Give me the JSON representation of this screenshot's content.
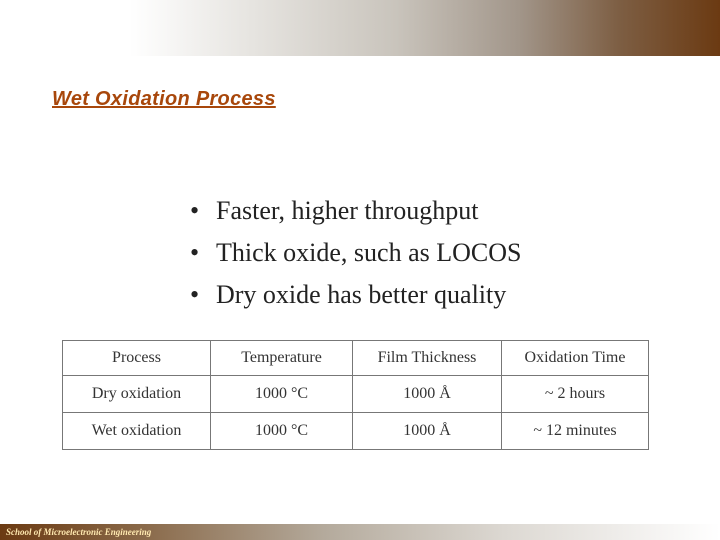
{
  "title": "Wet Oxidation Process",
  "bullets": [
    "Faster, higher throughput",
    "Thick oxide, such as LOCOS",
    "Dry oxide has better quality"
  ],
  "bullet_symbol": "•",
  "table": {
    "headers": [
      "Process",
      "Temperature",
      "Film Thickness",
      "Oxidation Time"
    ],
    "rows": [
      [
        "Dry oxidation",
        "1000 °C",
        "1000 Å",
        "~ 2 hours"
      ],
      [
        "Wet oxidation",
        "1000 °C",
        "1000 Å",
        "~ 12 minutes"
      ]
    ]
  },
  "footer": "School of Microelectronic Engineering",
  "colors": {
    "title": "#a8470b",
    "accent_dark": "#6b3a12"
  }
}
